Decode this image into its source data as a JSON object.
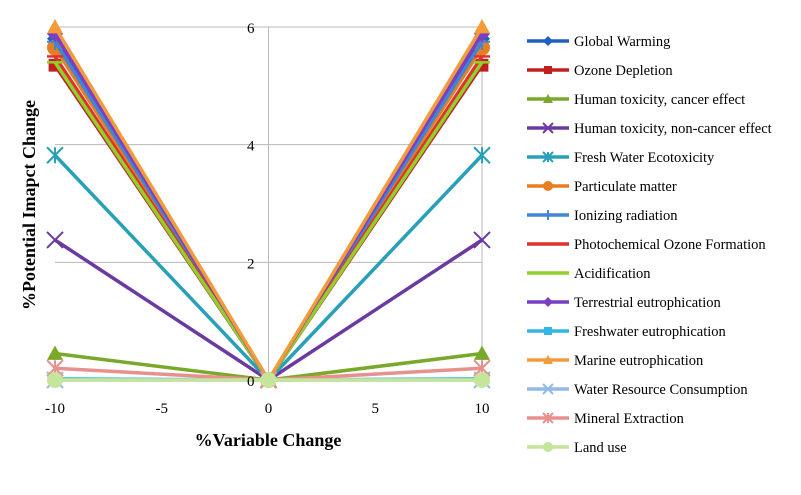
{
  "chart_data": {
    "type": "line",
    "xlabel": "%Variable Change",
    "ylabel": "%Potential Imapct Change",
    "x": [
      -10,
      0,
      10
    ],
    "x_ticks": [
      "-10",
      "-5",
      "0",
      "5",
      "10"
    ],
    "y_ticks": [
      "0",
      "2",
      "4",
      "6"
    ],
    "xlim": [
      -10,
      10
    ],
    "ylim": [
      0,
      6
    ],
    "grid": "major gridlines on both axes",
    "legend_position": "right",
    "series": [
      {
        "name": "Global Warming",
        "values": [
          5.8,
          0,
          5.8
        ],
        "color": "#1f5fbf",
        "marker": "diamond"
      },
      {
        "name": "Ozone Depletion",
        "values": [
          5.35,
          0,
          5.35
        ],
        "color": "#c0211f",
        "marker": "square"
      },
      {
        "name": "Human toxicity, cancer effect",
        "values": [
          0.45,
          0,
          0.45
        ],
        "color": "#7aa82a",
        "marker": "triangle"
      },
      {
        "name": "Human toxicity, non-cancer effect",
        "values": [
          2.38,
          0,
          2.38
        ],
        "color": "#6a3aa0",
        "marker": "x"
      },
      {
        "name": "Fresh Water Ecotoxicity",
        "values": [
          3.82,
          0,
          3.82
        ],
        "color": "#27a0b8",
        "marker": "star"
      },
      {
        "name": "Particulate matter",
        "values": [
          5.65,
          0,
          5.65
        ],
        "color": "#e67e22",
        "marker": "circle"
      },
      {
        "name": "Ionizing radiation",
        "values": [
          5.75,
          0,
          5.75
        ],
        "color": "#3f86d6",
        "marker": "plus"
      },
      {
        "name": "Photochemical Ozone Formation",
        "values": [
          5.5,
          0,
          5.5
        ],
        "color": "#e0312c",
        "marker": "dash"
      },
      {
        "name": "Acidification",
        "values": [
          5.4,
          0,
          5.4
        ],
        "color": "#8fd02a",
        "marker": "dash"
      },
      {
        "name": "Terrestrial eutrophication",
        "values": [
          5.88,
          0,
          5.88
        ],
        "color": "#7b3fc4",
        "marker": "diamond"
      },
      {
        "name": "Freshwater eutrophication",
        "values": [
          0.02,
          0,
          0.02
        ],
        "color": "#33b5e5",
        "marker": "square"
      },
      {
        "name": "Marine eutrophication",
        "values": [
          6.0,
          0,
          6.0
        ],
        "color": "#f39a3a",
        "marker": "triangle"
      },
      {
        "name": "Water Resource Consumption",
        "values": [
          0.0,
          0,
          0.0
        ],
        "color": "#93b8e8",
        "marker": "x"
      },
      {
        "name": "Mineral Extraction",
        "values": [
          0.2,
          0,
          0.2
        ],
        "color": "#e8908e",
        "marker": "star"
      },
      {
        "name": "Land use",
        "values": [
          0.0,
          0,
          0.0
        ],
        "color": "#c4e59a",
        "marker": "circle"
      }
    ]
  }
}
